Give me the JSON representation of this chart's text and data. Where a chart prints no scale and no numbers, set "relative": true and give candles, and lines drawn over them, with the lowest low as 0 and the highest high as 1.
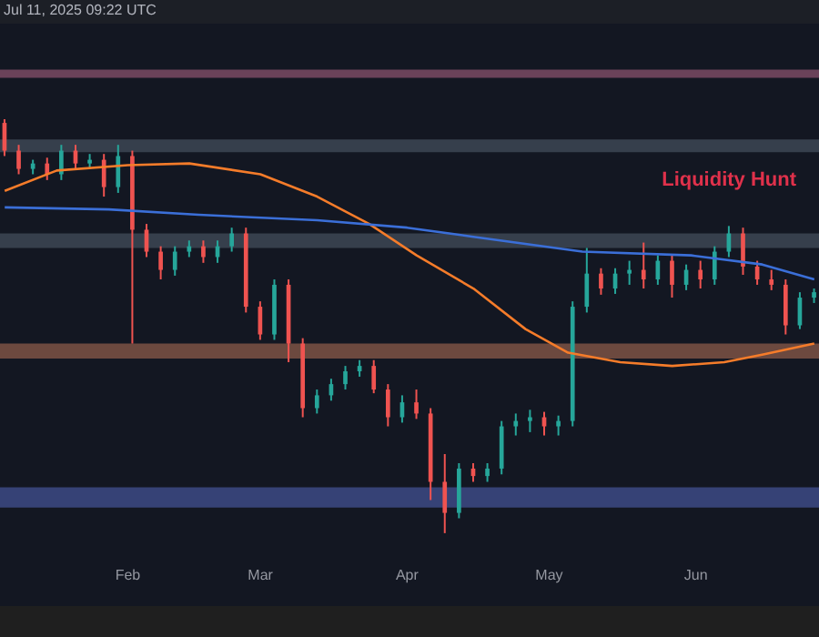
{
  "chart_data": {
    "type": "candlestick",
    "relative": true,
    "x": [
      "2025-01-06",
      "2025-01-09",
      "2025-01-12",
      "2025-01-15",
      "2025-01-18",
      "2025-01-21",
      "2025-01-24",
      "2025-01-27",
      "2025-01-30",
      "2025-02-02",
      "2025-02-05",
      "2025-02-08",
      "2025-02-11",
      "2025-02-14",
      "2025-02-17",
      "2025-02-20",
      "2025-02-23",
      "2025-02-26",
      "2025-03-01",
      "2025-03-04",
      "2025-03-07",
      "2025-03-10",
      "2025-03-13",
      "2025-03-16",
      "2025-03-19",
      "2025-03-22",
      "2025-03-25",
      "2025-03-28",
      "2025-03-31",
      "2025-04-03",
      "2025-04-06",
      "2025-04-09",
      "2025-04-12",
      "2025-04-15",
      "2025-04-18",
      "2025-04-21",
      "2025-04-24",
      "2025-04-27",
      "2025-04-30",
      "2025-05-03",
      "2025-05-06",
      "2025-05-09",
      "2025-05-12",
      "2025-05-15",
      "2025-05-18",
      "2025-05-21",
      "2025-05-24",
      "2025-05-27",
      "2025-05-30",
      "2025-06-02",
      "2025-06-05",
      "2025-06-08",
      "2025-06-11",
      "2025-06-14",
      "2025-06-17",
      "2025-06-20",
      "2025-06-23",
      "2025-06-26"
    ],
    "ohlc": [
      [
        0.991,
        1.0,
        0.911,
        0.924
      ],
      [
        0.924,
        0.938,
        0.867,
        0.88
      ],
      [
        0.88,
        0.902,
        0.867,
        0.893
      ],
      [
        0.893,
        0.907,
        0.853,
        0.867
      ],
      [
        0.867,
        0.938,
        0.853,
        0.924
      ],
      [
        0.924,
        0.938,
        0.88,
        0.893
      ],
      [
        0.893,
        0.916,
        0.88,
        0.902
      ],
      [
        0.902,
        0.916,
        0.813,
        0.836
      ],
      [
        0.836,
        0.938,
        0.822,
        0.911
      ],
      [
        0.911,
        0.924,
        0.458,
        0.733
      ],
      [
        0.733,
        0.747,
        0.667,
        0.68
      ],
      [
        0.68,
        0.693,
        0.613,
        0.636
      ],
      [
        0.636,
        0.693,
        0.622,
        0.68
      ],
      [
        0.68,
        0.707,
        0.667,
        0.693
      ],
      [
        0.693,
        0.707,
        0.653,
        0.667
      ],
      [
        0.667,
        0.707,
        0.653,
        0.693
      ],
      [
        0.693,
        0.738,
        0.68,
        0.724
      ],
      [
        0.724,
        0.738,
        0.533,
        0.547
      ],
      [
        0.547,
        0.56,
        0.467,
        0.48
      ],
      [
        0.48,
        0.613,
        0.467,
        0.6
      ],
      [
        0.6,
        0.613,
        0.413,
        0.458
      ],
      [
        0.458,
        0.471,
        0.28,
        0.302
      ],
      [
        0.302,
        0.347,
        0.289,
        0.333
      ],
      [
        0.333,
        0.373,
        0.32,
        0.36
      ],
      [
        0.36,
        0.404,
        0.347,
        0.391
      ],
      [
        0.391,
        0.418,
        0.378,
        0.404
      ],
      [
        0.404,
        0.418,
        0.338,
        0.347
      ],
      [
        0.347,
        0.36,
        0.258,
        0.28
      ],
      [
        0.28,
        0.333,
        0.267,
        0.316
      ],
      [
        0.316,
        0.347,
        0.276,
        0.289
      ],
      [
        0.289,
        0.302,
        0.08,
        0.124
      ],
      [
        0.124,
        0.191,
        0.0,
        0.049
      ],
      [
        0.049,
        0.169,
        0.036,
        0.156
      ],
      [
        0.156,
        0.169,
        0.124,
        0.138
      ],
      [
        0.138,
        0.169,
        0.124,
        0.156
      ],
      [
        0.156,
        0.271,
        0.142,
        0.258
      ],
      [
        0.258,
        0.289,
        0.236,
        0.271
      ],
      [
        0.271,
        0.298,
        0.244,
        0.28
      ],
      [
        0.28,
        0.293,
        0.236,
        0.258
      ],
      [
        0.258,
        0.284,
        0.236,
        0.271
      ],
      [
        0.271,
        0.56,
        0.258,
        0.547
      ],
      [
        0.547,
        0.689,
        0.533,
        0.627
      ],
      [
        0.627,
        0.64,
        0.576,
        0.591
      ],
      [
        0.591,
        0.64,
        0.578,
        0.627
      ],
      [
        0.627,
        0.658,
        0.6,
        0.636
      ],
      [
        0.636,
        0.702,
        0.591,
        0.613
      ],
      [
        0.613,
        0.671,
        0.6,
        0.658
      ],
      [
        0.658,
        0.671,
        0.569,
        0.6
      ],
      [
        0.6,
        0.649,
        0.587,
        0.636
      ],
      [
        0.636,
        0.658,
        0.591,
        0.613
      ],
      [
        0.613,
        0.693,
        0.6,
        0.68
      ],
      [
        0.68,
        0.742,
        0.667,
        0.724
      ],
      [
        0.724,
        0.738,
        0.624,
        0.644
      ],
      [
        0.644,
        0.658,
        0.6,
        0.613
      ],
      [
        0.613,
        0.636,
        0.587,
        0.6
      ],
      [
        0.6,
        0.613,
        0.48,
        0.502
      ],
      [
        0.502,
        0.582,
        0.493,
        0.569
      ],
      [
        0.569,
        0.591,
        0.556,
        0.582
      ]
    ],
    "series": [
      {
        "type": "line",
        "color": "#f57c2a",
        "x": [
          "2025-01-06",
          "2025-01-17",
          "2025-02-01",
          "2025-02-14",
          "2025-03-01",
          "2025-03-13",
          "2025-03-24",
          "2025-04-03",
          "2025-04-15",
          "2025-04-26",
          "2025-05-05",
          "2025-05-16",
          "2025-05-27",
          "2025-06-07",
          "2025-06-15",
          "2025-06-26"
        ],
        "values": [
          0.827,
          0.876,
          0.889,
          0.893,
          0.867,
          0.813,
          0.747,
          0.671,
          0.591,
          0.493,
          0.436,
          0.413,
          0.404,
          0.413,
          0.431,
          0.458
        ]
      },
      {
        "type": "line",
        "color": "#3b6fd8",
        "x": [
          "2025-01-06",
          "2025-01-28",
          "2025-02-16",
          "2025-03-13",
          "2025-04-01",
          "2025-04-15",
          "2025-05-08",
          "2025-05-31",
          "2025-06-15",
          "2025-06-26"
        ],
        "values": [
          0.787,
          0.782,
          0.769,
          0.756,
          0.738,
          0.716,
          0.68,
          0.671,
          0.649,
          0.613
        ]
      }
    ],
    "bands": [
      {
        "axis": "y",
        "from": 1.1,
        "to": 1.12,
        "color": "#7a4a63"
      },
      {
        "axis": "y",
        "from": 0.92,
        "to": 0.951,
        "color": "#3d4754"
      },
      {
        "axis": "y",
        "from": 0.689,
        "to": 0.724,
        "color": "#3d4754"
      },
      {
        "axis": "y",
        "from": 0.422,
        "to": 0.458,
        "color": "#7d5244"
      },
      {
        "axis": "y",
        "from": 0.062,
        "to": 0.111,
        "color": "#3d4a85"
      }
    ],
    "xlim": [
      "2025-01-05",
      "2025-06-27"
    ],
    "xticks": [
      {
        "value": "2025-02-01",
        "label": "Feb"
      },
      {
        "value": "2025-03-01",
        "label": "Mar"
      },
      {
        "value": "2025-04-01",
        "label": "Apr"
      },
      {
        "value": "2025-05-01",
        "label": "May"
      },
      {
        "value": "2025-06-01",
        "label": "Jun"
      }
    ],
    "annotations": [
      "Jul 11, 2025 09:22 UTC",
      {
        "text": "Liquidity Hunt",
        "x": "2025-06-08",
        "y": 0.742
      }
    ]
  }
}
